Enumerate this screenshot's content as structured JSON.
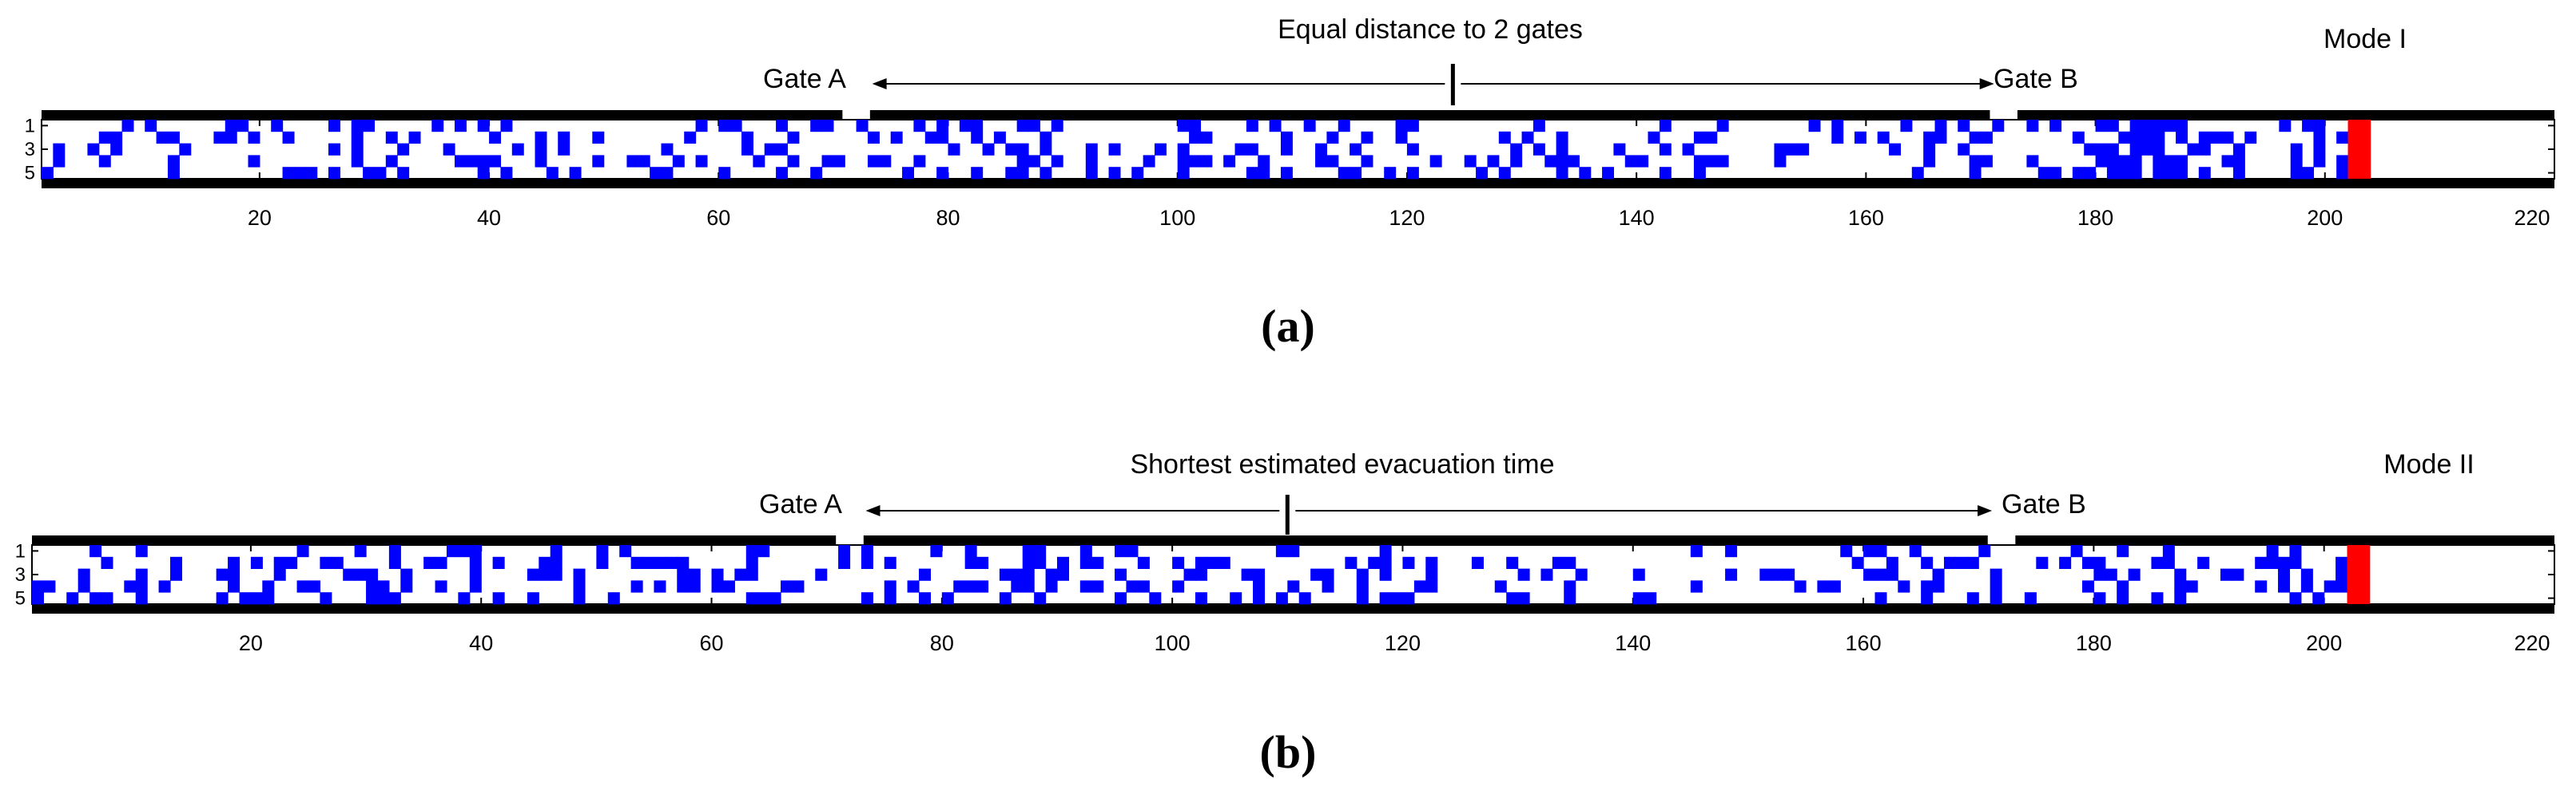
{
  "chart_data": [
    {
      "type": "heatmap",
      "panel_label": "(a)",
      "mode_label": "Mode I",
      "annotation": "Equal distance to 2 gates",
      "divider_x": 124,
      "gates": [
        {
          "name": "Gate A",
          "x": 72
        },
        {
          "name": "Gate B",
          "x": 172
        }
      ],
      "x_ticks": [
        20,
        40,
        60,
        80,
        100,
        120,
        140,
        160,
        180,
        200,
        220
      ],
      "y_ticks": [
        1,
        3,
        5
      ],
      "xlim": [
        1,
        220
      ],
      "ylim": [
        1,
        5
      ],
      "red_block_x": [
        202,
        203
      ],
      "density_zones": [
        [
          1,
          20,
          0.22
        ],
        [
          20,
          80,
          0.26
        ],
        [
          80,
          120,
          0.3
        ],
        [
          120,
          140,
          0.17
        ],
        [
          140,
          160,
          0.25
        ],
        [
          160,
          180,
          0.24
        ],
        [
          180,
          188,
          0.55
        ],
        [
          188,
          202,
          0.33
        ]
      ],
      "seed": 7,
      "colors": {
        "agent": "#0000ff",
        "red": "#ff0000",
        "wall": "#000000"
      }
    },
    {
      "type": "heatmap",
      "panel_label": "(b)",
      "mode_label": "Mode II",
      "annotation": "Shortest estimated evacuation time",
      "divider_x": 110,
      "gates": [
        {
          "name": "Gate A",
          "x": 72
        },
        {
          "name": "Gate B",
          "x": 172
        }
      ],
      "x_ticks": [
        20,
        40,
        60,
        80,
        100,
        120,
        140,
        160,
        180,
        200,
        220
      ],
      "y_ticks": [
        1,
        3,
        5
      ],
      "xlim": [
        1,
        220
      ],
      "ylim": [
        1,
        5
      ],
      "red_block_x": [
        202,
        203
      ],
      "density_zones": [
        [
          1,
          20,
          0.22
        ],
        [
          20,
          80,
          0.27
        ],
        [
          80,
          120,
          0.3
        ],
        [
          120,
          140,
          0.17
        ],
        [
          140,
          160,
          0.25
        ],
        [
          160,
          180,
          0.24
        ],
        [
          180,
          188,
          0.55
        ],
        [
          188,
          202,
          0.33
        ]
      ],
      "seed": 13,
      "colors": {
        "agent": "#0000ff",
        "red": "#ff0000",
        "wall": "#000000"
      }
    }
  ]
}
